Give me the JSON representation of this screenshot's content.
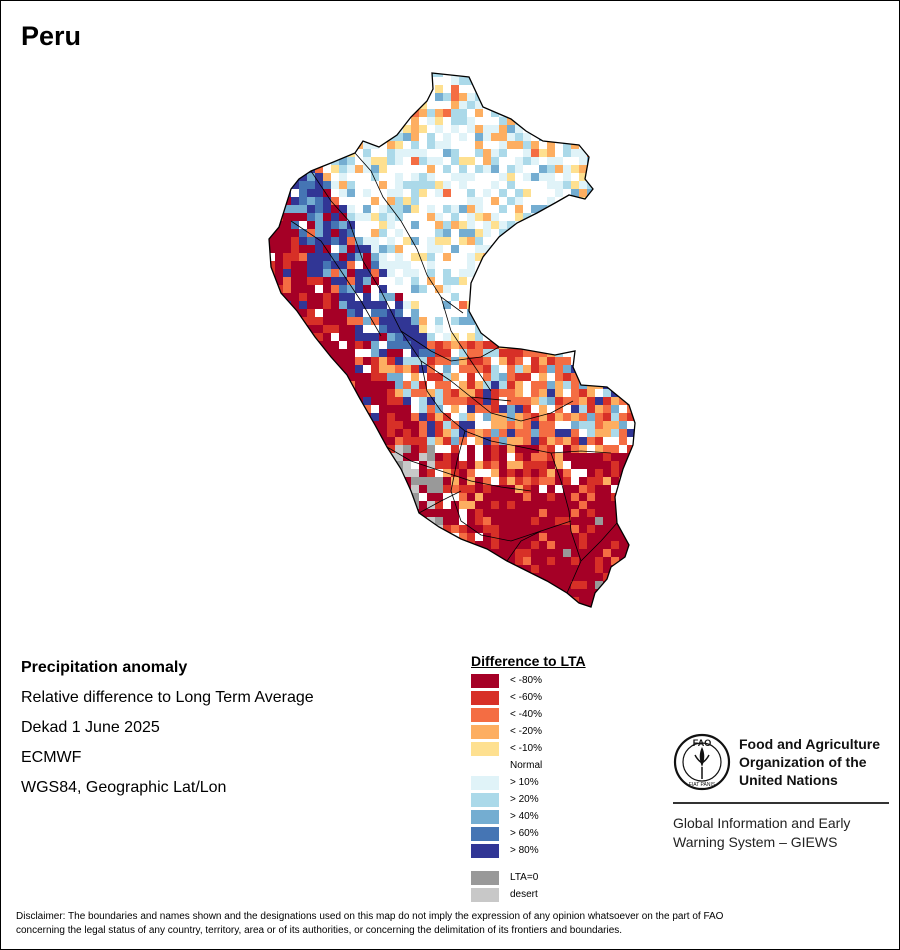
{
  "title": "Peru",
  "info": {
    "heading": "Precipitation anomaly",
    "line1": "Relative difference to Long Term Average",
    "line2": "Dekad 1 June 2025",
    "line3": "ECMWF",
    "line4": "WGS84, Geographic Lat/Lon"
  },
  "legend": {
    "title": "Difference to LTA",
    "items": [
      {
        "label": "< -80%",
        "color": "#a50026"
      },
      {
        "label": "< -60%",
        "color": "#d73027"
      },
      {
        "label": "< -40%",
        "color": "#f46d43"
      },
      {
        "label": "< -20%",
        "color": "#fdae61"
      },
      {
        "label": "< -10%",
        "color": "#fee090"
      },
      {
        "label": "Normal",
        "color": "#ffffff"
      },
      {
        "label": "> 10%",
        "color": "#e0f3f8"
      },
      {
        "label": "> 20%",
        "color": "#abd9e9"
      },
      {
        "label": "> 40%",
        "color": "#74add1"
      },
      {
        "label": "> 60%",
        "color": "#4575b4"
      },
      {
        "label": "> 80%",
        "color": "#313695"
      }
    ],
    "extra": [
      {
        "label": "LTA=0",
        "color": "#999999"
      },
      {
        "label": "desert",
        "color": "#c8c8c8"
      }
    ]
  },
  "fao": {
    "logo_text": "FAO",
    "logo_motto": "FIAT PANIS",
    "name_line1": "Food and Agriculture",
    "name_line2": "Organization of the",
    "name_line3": "United Nations",
    "giews_line1": "Global Information and Early",
    "giews_line2": "Warning System – GIEWS"
  },
  "disclaimer_line1": "Disclaimer: The boundaries and names shown and the designations used on this map do not imply the expression of any opinion whatsoever on the part of FAO",
  "disclaimer_line2": "concerning the legal status of any country, territory, area or of its authorities, or concerning the delimitation of its frontiers and boundaries."
}
